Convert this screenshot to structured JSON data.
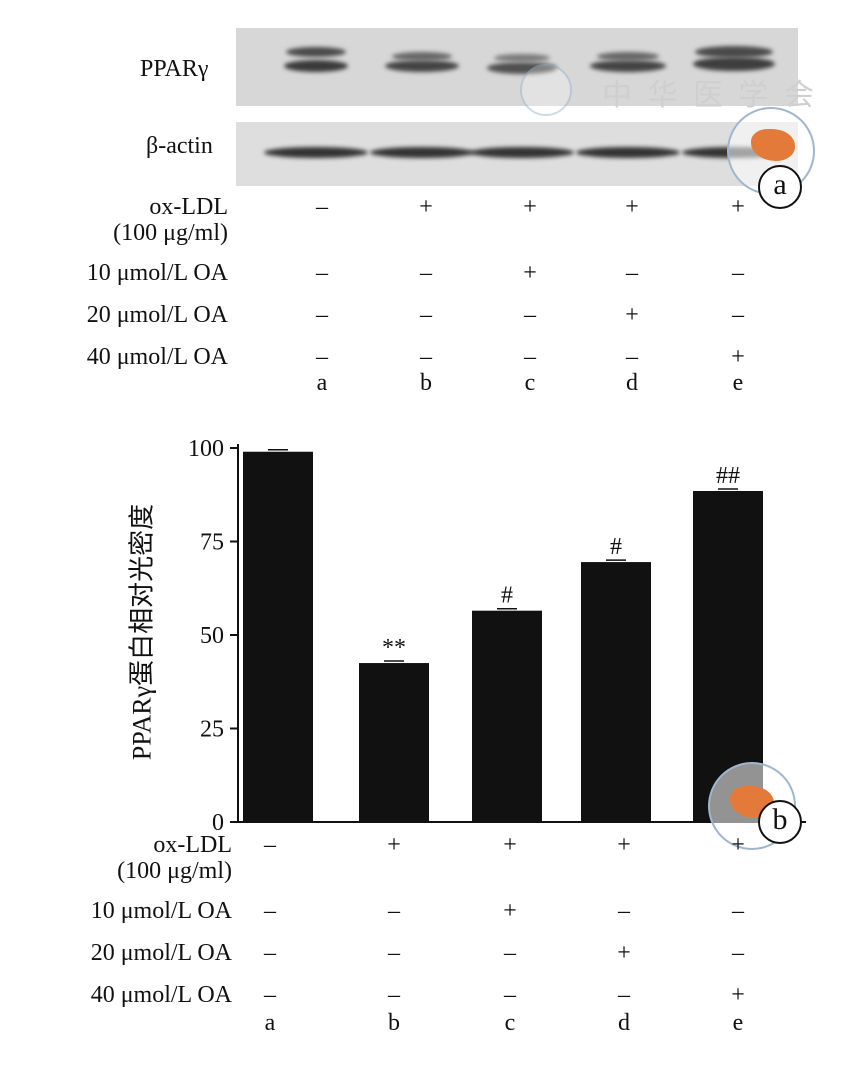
{
  "panel_a": {
    "badge": "a",
    "blots": [
      {
        "label": "PPARγ"
      },
      {
        "label": "β-actin"
      }
    ],
    "watermark_text": "中 华 医 学 会"
  },
  "conditions": {
    "rows": [
      {
        "label": "ox-LDL",
        "sub": "(100 μg/ml)",
        "marks": [
          "–",
          "+",
          "+",
          "+",
          "+"
        ]
      },
      {
        "label": "10 μmol/L OA",
        "marks": [
          "–",
          "–",
          "+",
          "–",
          "–"
        ]
      },
      {
        "label": "20 μmol/L OA",
        "marks": [
          "–",
          "–",
          "–",
          "+",
          "–"
        ]
      },
      {
        "label": "40 μmol/L OA",
        "marks": [
          "–",
          "–",
          "–",
          "–",
          "+"
        ]
      }
    ],
    "lanes": [
      "a",
      "b",
      "c",
      "d",
      "e"
    ]
  },
  "panel_b": {
    "badge": "b"
  },
  "chart_data": {
    "type": "bar",
    "categories": [
      "a",
      "b",
      "c",
      "d",
      "e"
    ],
    "values": [
      99,
      42.5,
      56.5,
      69.5,
      88.5
    ],
    "annotations": [
      "",
      "**",
      "#",
      "#",
      "##"
    ],
    "ylabel": "PPARγ蛋白相对光密度",
    "xlabel": "",
    "ylim": [
      0,
      100
    ],
    "yticks": [
      0,
      25,
      50,
      75,
      100
    ],
    "grid": false,
    "bar_color": "#111111"
  }
}
